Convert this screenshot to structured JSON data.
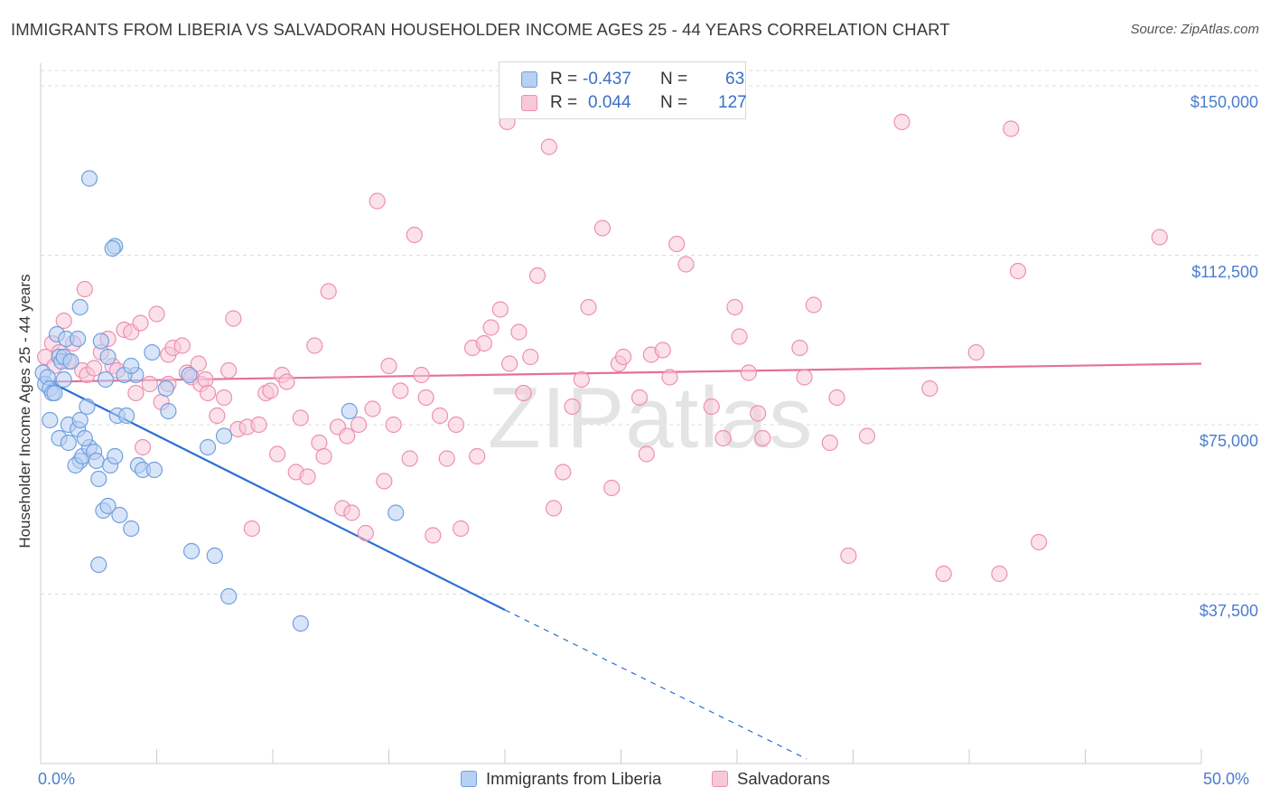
{
  "chart_data": {
    "type": "scatter",
    "title": "IMMIGRANTS FROM LIBERIA VS SALVADORAN HOUSEHOLDER INCOME AGES 25 - 44 YEARS CORRELATION CHART",
    "source": "Source: ZipAtlas.com",
    "xlabel": "",
    "ylabel": "Householder Income Ages 25 - 44 years",
    "xlim": [
      0,
      50
    ],
    "ylim": [
      0,
      155000
    ],
    "x_tick_labels": [
      "0.0%",
      "50.0%"
    ],
    "y_ticks": [
      37500,
      75000,
      112500,
      150000
    ],
    "y_tick_labels": [
      "$37,500",
      "$75,000",
      "$112,500",
      "$150,000"
    ],
    "watermark": "ZIPatlas",
    "legend": {
      "rows": [
        {
          "r_label": "R =",
          "r_value": "-0.437",
          "n_label": "N =",
          "n_value": "63"
        },
        {
          "r_label": "R =",
          "r_value": "0.044",
          "n_label": "N =",
          "n_value": "127"
        }
      ]
    },
    "series": [
      {
        "name": "Immigrants from Liberia",
        "color": "#6f9fdf",
        "fill": "#b8d0f2",
        "trend": {
          "x0": 0.2,
          "y0": 85000,
          "x1": 20,
          "y1": 34000,
          "dash_to_x": 33,
          "dash_to_y": 1000,
          "line_color": "#2b6fd1"
        },
        "points": [
          [
            0.1,
            86500
          ],
          [
            0.2,
            84000
          ],
          [
            0.3,
            85500
          ],
          [
            0.4,
            83000
          ],
          [
            0.5,
            82000
          ],
          [
            0.6,
            82000
          ],
          [
            0.7,
            95000
          ],
          [
            0.8,
            90000
          ],
          [
            0.9,
            89000
          ],
          [
            1.0,
            85000
          ],
          [
            0.4,
            76000
          ],
          [
            0.8,
            72000
          ],
          [
            1.2,
            71000
          ],
          [
            1.1,
            94000
          ],
          [
            1.0,
            90000
          ],
          [
            1.3,
            89000
          ],
          [
            1.6,
            94000
          ],
          [
            1.7,
            67000
          ],
          [
            1.5,
            66000
          ],
          [
            1.2,
            75000
          ],
          [
            1.6,
            74000
          ],
          [
            2.0,
            79000
          ],
          [
            1.7,
            76000
          ],
          [
            1.8,
            68000
          ],
          [
            2.1,
            70000
          ],
          [
            2.3,
            69000
          ],
          [
            1.9,
            72000
          ],
          [
            2.4,
            67000
          ],
          [
            2.5,
            63000
          ],
          [
            2.7,
            56000
          ],
          [
            2.9,
            57000
          ],
          [
            3.0,
            66000
          ],
          [
            3.2,
            68000
          ],
          [
            2.6,
            93500
          ],
          [
            2.9,
            90000
          ],
          [
            2.8,
            85000
          ],
          [
            3.3,
            77000
          ],
          [
            3.7,
            77000
          ],
          [
            3.4,
            55000
          ],
          [
            3.9,
            52000
          ],
          [
            4.1,
            86000
          ],
          [
            4.2,
            66000
          ],
          [
            4.4,
            65000
          ],
          [
            4.8,
            91000
          ],
          [
            4.9,
            65000
          ],
          [
            5.4,
            83000
          ],
          [
            5.5,
            78000
          ],
          [
            3.6,
            86000
          ],
          [
            3.2,
            114500
          ],
          [
            3.1,
            114000
          ],
          [
            2.1,
            129500
          ],
          [
            1.7,
            101000
          ],
          [
            2.5,
            44000
          ],
          [
            6.4,
            86000
          ],
          [
            6.5,
            47000
          ],
          [
            7.2,
            70000
          ],
          [
            7.5,
            46000
          ],
          [
            7.9,
            72500
          ],
          [
            8.1,
            37000
          ],
          [
            11.2,
            31000
          ],
          [
            13.3,
            78000
          ],
          [
            15.3,
            55500
          ],
          [
            3.9,
            88000
          ]
        ]
      },
      {
        "name": "Salvadorans",
        "color": "#ee8fb0",
        "fill": "#f8c8d8",
        "trend": {
          "x0": 0.2,
          "y0": 84500,
          "x1": 50,
          "y1": 88500,
          "line_color": "#e4709a"
        },
        "points": [
          [
            0.2,
            90000
          ],
          [
            0.5,
            93000
          ],
          [
            0.6,
            88000
          ],
          [
            0.8,
            91000
          ],
          [
            1.0,
            98000
          ],
          [
            1.2,
            89000
          ],
          [
            1.4,
            93000
          ],
          [
            1.8,
            87000
          ],
          [
            1.9,
            105000
          ],
          [
            2.0,
            86000
          ],
          [
            2.3,
            87500
          ],
          [
            2.6,
            91000
          ],
          [
            2.9,
            94000
          ],
          [
            3.1,
            88000
          ],
          [
            3.3,
            87000
          ],
          [
            3.6,
            96000
          ],
          [
            3.9,
            95500
          ],
          [
            4.1,
            82000
          ],
          [
            4.3,
            97500
          ],
          [
            4.4,
            70000
          ],
          [
            4.7,
            84000
          ],
          [
            5.0,
            99500
          ],
          [
            5.2,
            80000
          ],
          [
            5.5,
            84000
          ],
          [
            5.5,
            90500
          ],
          [
            5.7,
            92000
          ],
          [
            6.1,
            92500
          ],
          [
            6.3,
            86500
          ],
          [
            6.5,
            85500
          ],
          [
            6.8,
            88500
          ],
          [
            6.9,
            84000
          ],
          [
            7.1,
            85000
          ],
          [
            7.2,
            82000
          ],
          [
            7.6,
            77000
          ],
          [
            7.9,
            81000
          ],
          [
            8.1,
            87000
          ],
          [
            8.3,
            98500
          ],
          [
            8.5,
            74000
          ],
          [
            8.9,
            74500
          ],
          [
            9.1,
            52000
          ],
          [
            9.4,
            75000
          ],
          [
            9.7,
            82000
          ],
          [
            9.9,
            82500
          ],
          [
            10.2,
            68500
          ],
          [
            10.4,
            86000
          ],
          [
            10.6,
            84500
          ],
          [
            11.0,
            64500
          ],
          [
            11.2,
            76500
          ],
          [
            11.5,
            63500
          ],
          [
            11.8,
            92500
          ],
          [
            12.0,
            71000
          ],
          [
            12.2,
            68000
          ],
          [
            12.4,
            104500
          ],
          [
            12.8,
            74500
          ],
          [
            13.0,
            56500
          ],
          [
            13.2,
            72500
          ],
          [
            13.4,
            55500
          ],
          [
            13.7,
            75000
          ],
          [
            14.0,
            51000
          ],
          [
            14.3,
            78500
          ],
          [
            14.5,
            124500
          ],
          [
            14.8,
            62500
          ],
          [
            15.0,
            88000
          ],
          [
            15.2,
            75000
          ],
          [
            15.5,
            82500
          ],
          [
            15.9,
            67500
          ],
          [
            16.1,
            117000
          ],
          [
            16.4,
            86000
          ],
          [
            16.6,
            81000
          ],
          [
            16.9,
            50500
          ],
          [
            17.2,
            77000
          ],
          [
            17.5,
            67500
          ],
          [
            17.9,
            75000
          ],
          [
            18.1,
            52000
          ],
          [
            18.6,
            92000
          ],
          [
            19.1,
            93000
          ],
          [
            19.4,
            96500
          ],
          [
            19.8,
            100500
          ],
          [
            20.2,
            88500
          ],
          [
            20.6,
            95500
          ],
          [
            20.8,
            82000
          ],
          [
            21.1,
            90000
          ],
          [
            21.4,
            108000
          ],
          [
            21.9,
            136500
          ],
          [
            22.1,
            56500
          ],
          [
            22.5,
            64500
          ],
          [
            22.9,
            79000
          ],
          [
            23.3,
            85000
          ],
          [
            23.6,
            101000
          ],
          [
            24.2,
            118500
          ],
          [
            24.6,
            61000
          ],
          [
            24.9,
            88500
          ],
          [
            25.1,
            90000
          ],
          [
            25.8,
            81000
          ],
          [
            26.3,
            90500
          ],
          [
            26.8,
            91500
          ],
          [
            27.1,
            85500
          ],
          [
            27.4,
            115000
          ],
          [
            27.8,
            110500
          ],
          [
            28.9,
            79000
          ],
          [
            29.4,
            72000
          ],
          [
            29.9,
            101000
          ],
          [
            30.1,
            94500
          ],
          [
            30.5,
            86500
          ],
          [
            30.9,
            77500
          ],
          [
            31.1,
            72000
          ],
          [
            32.7,
            92000
          ],
          [
            32.9,
            85500
          ],
          [
            33.3,
            101500
          ],
          [
            34.0,
            71000
          ],
          [
            34.3,
            81000
          ],
          [
            34.8,
            46000
          ],
          [
            35.6,
            72500
          ],
          [
            37.1,
            142000
          ],
          [
            38.3,
            83000
          ],
          [
            38.9,
            42000
          ],
          [
            40.3,
            91000
          ],
          [
            41.3,
            42000
          ],
          [
            41.8,
            140500
          ],
          [
            42.1,
            109000
          ],
          [
            43.0,
            49000
          ],
          [
            48.2,
            116500
          ],
          [
            20.1,
            142000
          ],
          [
            18.8,
            68000
          ],
          [
            26.1,
            68500
          ]
        ]
      }
    ]
  }
}
